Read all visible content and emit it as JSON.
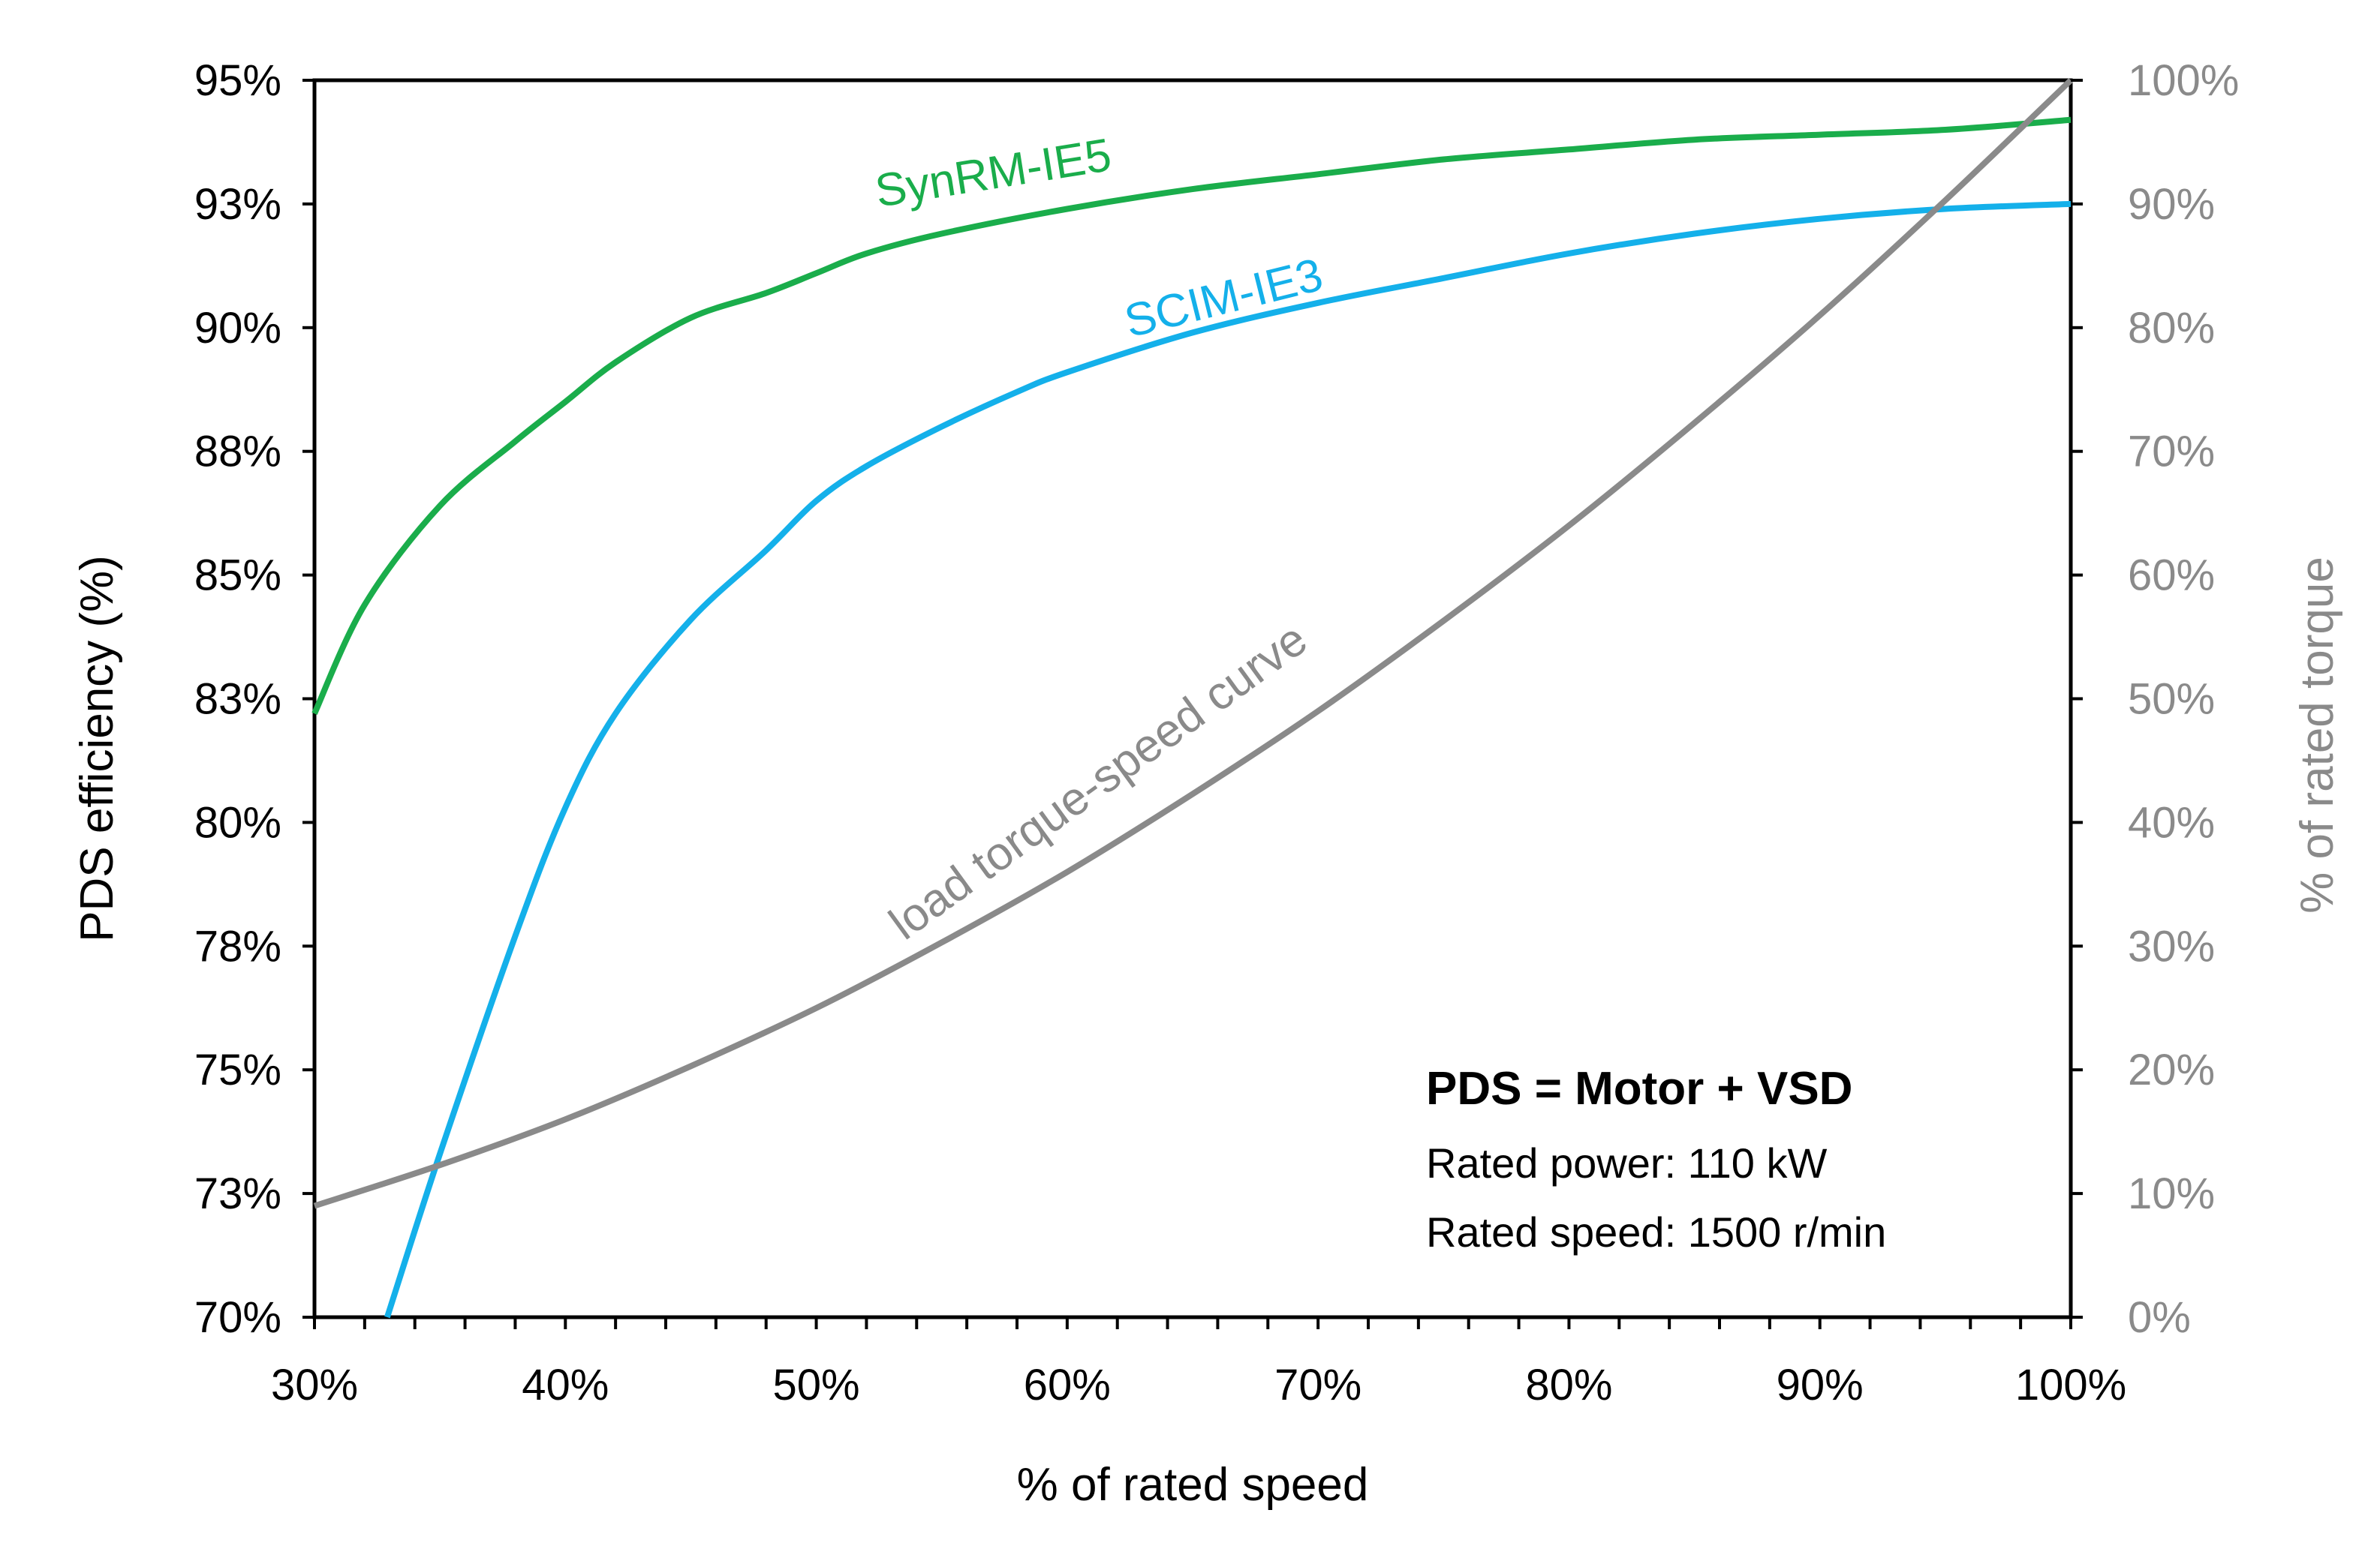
{
  "chart_data": {
    "type": "line",
    "title": "",
    "xlabel": "% of rated speed",
    "ylabel_left": "PDS efficiency (%)",
    "ylabel_right": "% of rated torque",
    "xlim": [
      30,
      100
    ],
    "ylim_left": [
      70,
      95
    ],
    "ylim_right": [
      0,
      100
    ],
    "x_ticks": [
      30,
      40,
      50,
      60,
      70,
      80,
      90,
      100
    ],
    "x_tick_labels": [
      "30%",
      "40%",
      "50%",
      "60%",
      "70%",
      "80%",
      "90%",
      "100%"
    ],
    "y_left_ticks": [
      70,
      72.5,
      75,
      77.5,
      80,
      82.5,
      85,
      87.5,
      90,
      92.5,
      95
    ],
    "y_left_tick_labels": [
      "70%",
      "73%",
      "75%",
      "78%",
      "80%",
      "83%",
      "85%",
      "88%",
      "90%",
      "93%",
      "95%"
    ],
    "y_right_ticks": [
      0,
      10,
      20,
      30,
      40,
      50,
      60,
      70,
      80,
      90,
      100
    ],
    "y_right_tick_labels": [
      "0%",
      "10%",
      "20%",
      "30%",
      "40%",
      "50%",
      "60%",
      "70%",
      "80%",
      "90%",
      "100%"
    ],
    "series": [
      {
        "name": "SynRM-IE5",
        "axis": "left",
        "color": "#1aad4b",
        "x": [
          30,
          32,
          35,
          38,
          40,
          42,
          45,
          48,
          50,
          52,
          55,
          60,
          65,
          70,
          75,
          80,
          85,
          90,
          95,
          100
        ],
        "values": [
          82.2,
          84.4,
          86.4,
          87.7,
          88.5,
          89.3,
          90.2,
          90.7,
          91.1,
          91.5,
          91.9,
          92.4,
          92.8,
          93.1,
          93.4,
          93.6,
          93.8,
          93.9,
          94.0,
          94.2
        ]
      },
      {
        "name": "SCIM-IE3",
        "axis": "left",
        "color": "#14b0ea",
        "x": [
          32.9,
          35,
          38,
          40,
          42,
          45,
          48,
          50,
          52,
          55,
          58,
          60,
          65,
          70,
          75,
          80,
          85,
          90,
          95,
          100
        ],
        "values": [
          70,
          73.3,
          77.7,
          80.3,
          82.2,
          84.1,
          85.5,
          86.5,
          87.2,
          88.0,
          88.7,
          89.1,
          89.9,
          90.5,
          91.0,
          91.5,
          91.9,
          92.2,
          92.4,
          92.5
        ]
      },
      {
        "name": "load torque-speed curve",
        "axis": "right",
        "color": "#8a8a8a",
        "x": [
          30,
          35,
          40,
          45,
          50,
          55,
          60,
          65,
          70,
          75,
          80,
          85,
          90,
          95,
          100
        ],
        "values": [
          9,
          12.3,
          16,
          20.3,
          25,
          30.3,
          36,
          42.3,
          49,
          56.3,
          64,
          72.3,
          81,
          90.3,
          100
        ]
      }
    ],
    "annotations": {
      "note_title": "PDS = Motor + VSD",
      "note_lines": [
        "Rated power: 110 kW",
        "Rated speed: 1500 r/min"
      ]
    }
  }
}
